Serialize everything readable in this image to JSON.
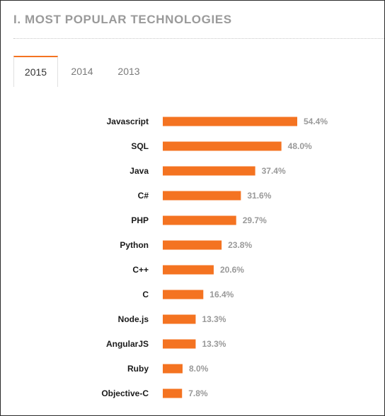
{
  "section": {
    "title": "I. MOST POPULAR TECHNOLOGIES"
  },
  "tabs": [
    {
      "label": "2015",
      "active": true
    },
    {
      "label": "2014",
      "active": false
    },
    {
      "label": "2013",
      "active": false
    }
  ],
  "colors": {
    "accent": "#f47321",
    "bar": "#f47321",
    "title": "#9a9a9a",
    "value_text": "#999999"
  },
  "chart_data": {
    "type": "bar",
    "orientation": "horizontal",
    "categories": [
      "Javascript",
      "SQL",
      "Java",
      "C#",
      "PHP",
      "Python",
      "C++",
      "C",
      "Node.js",
      "AngularJS",
      "Ruby",
      "Objective-C"
    ],
    "values": [
      54.4,
      48.0,
      37.4,
      31.6,
      29.7,
      23.8,
      20.6,
      16.4,
      13.3,
      13.3,
      8.0,
      7.8
    ],
    "value_labels": [
      "54.4%",
      "48.0%",
      "37.4%",
      "31.6%",
      "29.7%",
      "23.8%",
      "20.6%",
      "16.4%",
      "13.3%",
      "13.3%",
      "8.0%",
      "7.8%"
    ],
    "title": "",
    "xlabel": "",
    "ylabel": "",
    "xlim": [
      0,
      54.4
    ],
    "grid": false,
    "legend": "none"
  }
}
